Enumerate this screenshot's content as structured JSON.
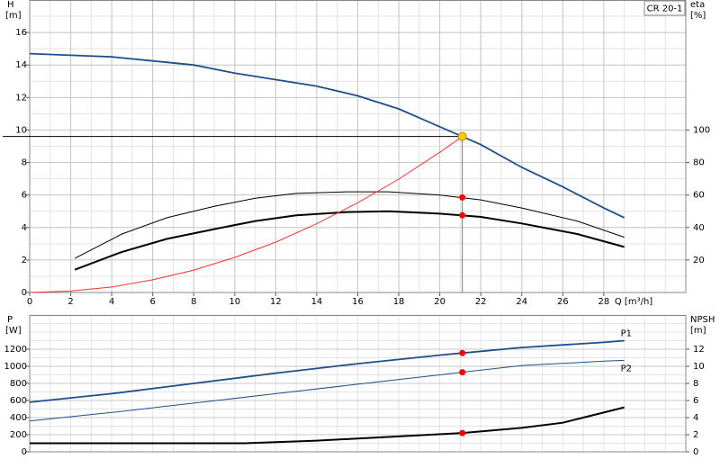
{
  "chart_data": [
    {
      "type": "line",
      "legend_label": "CR 20-1",
      "x_label": "Q [m³/h]",
      "y_label": "H",
      "y_unit": "[m]",
      "y2_label": "eta",
      "y2_unit": "[%]",
      "xlim": [
        0,
        32
      ],
      "xticks": [
        0,
        2,
        4,
        6,
        8,
        10,
        12,
        14,
        16,
        18,
        20,
        22,
        24,
        26,
        28
      ],
      "x_minor_step": 1,
      "ylim": [
        0,
        18
      ],
      "yticks": [
        0,
        2,
        4,
        6,
        8,
        10,
        12,
        14,
        16
      ],
      "y_minor_step": 1,
      "y2lim": [
        0,
        180
      ],
      "y2ticks": [
        20,
        40,
        60,
        80,
        100
      ],
      "grid": true,
      "operating_lines": true,
      "series": [
        {
          "color": "#1f4e8c",
          "width": 1.8,
          "x": [
            0,
            2,
            4,
            6,
            8,
            10,
            12,
            14,
            16,
            18,
            20,
            22,
            24,
            26,
            28,
            29
          ],
          "values": [
            14.7,
            14.6,
            14.5,
            14.25,
            14,
            13.5,
            13.1,
            12.7,
            12.1,
            11.3,
            10.2,
            9.1,
            7.7,
            6.5,
            5.2,
            4.6
          ]
        },
        {
          "color": "#000000",
          "width": 1,
          "axis": "y2",
          "x": [
            2.2,
            4.5,
            6.7,
            9,
            11,
            13,
            15.5,
            17.5,
            20,
            22,
            24,
            26.7,
            29
          ],
          "values": [
            21,
            36,
            46,
            53,
            58,
            61,
            62,
            62,
            60,
            57,
            52,
            44,
            34
          ]
        },
        {
          "color": "#000000",
          "width": 2,
          "axis": "y2",
          "x": [
            2.2,
            4.5,
            6.7,
            9,
            11,
            13,
            15.5,
            17.5,
            20,
            22,
            24,
            26.7,
            29
          ],
          "values": [
            14,
            25,
            33,
            39,
            44,
            47.5,
            49.5,
            50,
            48.5,
            46.5,
            42.5,
            36,
            28
          ]
        },
        {
          "color": "#ff3030",
          "width": 1,
          "x": [
            0,
            2,
            4,
            6,
            8,
            10,
            12,
            14,
            16,
            18,
            20,
            21.1
          ],
          "values": [
            0,
            0.09,
            0.34,
            0.78,
            1.38,
            2.16,
            3.1,
            4.23,
            5.52,
            6.98,
            8.63,
            9.6
          ]
        }
      ],
      "markers": [
        {
          "x": 21.1,
          "y": 9.6,
          "color": "#ffcc00"
        },
        {
          "x": 21.1,
          "y": 58.5,
          "color": "#ff0000",
          "axis": "y2"
        },
        {
          "x": 21.1,
          "y": 47.5,
          "color": "#ff0000",
          "axis": "y2"
        }
      ]
    },
    {
      "type": "line",
      "y_label": "P",
      "y_unit": "[W]",
      "y2_label": "NPSH",
      "y2_unit": "[m]",
      "xlim": [
        0,
        32
      ],
      "x_minor_step": 1,
      "ylim": [
        0,
        1600
      ],
      "yticks": [
        0,
        200,
        400,
        600,
        800,
        1000,
        1200
      ],
      "y_minor_step": 100,
      "y2lim": [
        0,
        16
      ],
      "y2ticks": [
        0,
        2,
        4,
        6,
        8,
        10,
        12
      ],
      "grid": true,
      "series": [
        {
          "name": "P1",
          "color": "#1f4e8c",
          "width": 1.8,
          "x": [
            0,
            4,
            8,
            12,
            16,
            20,
            24,
            28,
            29
          ],
          "values": [
            580,
            680,
            800,
            920,
            1030,
            1130,
            1220,
            1280,
            1300
          ]
        },
        {
          "name": "P2",
          "color": "#1f4e8c",
          "width": 1,
          "x": [
            0,
            4,
            8,
            12,
            16,
            20,
            24,
            28,
            29
          ],
          "values": [
            360,
            460,
            570,
            680,
            790,
            900,
            1010,
            1060,
            1070
          ]
        },
        {
          "color": "#000000",
          "width": 2,
          "axis": "y2",
          "x": [
            0,
            10.5,
            14,
            18,
            21.1,
            24,
            26,
            27,
            29
          ],
          "values": [
            1.0,
            1.0,
            1.3,
            1.8,
            2.2,
            2.8,
            3.4,
            4.0,
            5.2
          ]
        }
      ],
      "markers": [
        {
          "x": 21.1,
          "y": 1155,
          "color": "#ff0000"
        },
        {
          "x": 21.1,
          "y": 930,
          "color": "#ff0000"
        },
        {
          "x": 21.1,
          "y": 2.2,
          "color": "#ff0000",
          "axis": "y2"
        }
      ]
    }
  ]
}
